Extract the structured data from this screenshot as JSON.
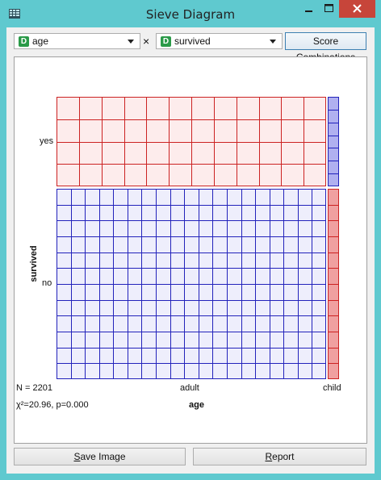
{
  "window": {
    "title": "Sieve Diagram",
    "colors": {
      "frame": "#5fc9cf",
      "close": "#c7453a"
    }
  },
  "controls": {
    "attr_x": {
      "type_badge": "D",
      "value": "age"
    },
    "separator": "×",
    "attr_y": {
      "type_badge": "D",
      "value": "survived"
    },
    "score_button": "Score Combinations"
  },
  "plot": {
    "y_axis_title": "survived",
    "x_axis_title": "age",
    "row_labels": [
      "yes",
      "no"
    ],
    "column_labels": [
      "adult",
      "child"
    ],
    "n_text": "N = 2201",
    "chi_text": "χ²=20.96, p=0.000",
    "colors": {
      "more_than_expected": "#b0b0f0",
      "less_than_expected": "#f0a0a0",
      "red_line": "#cc2222",
      "blue_line": "#2222bb"
    },
    "cells": [
      {
        "row": "yes",
        "column": "adult",
        "color": "red",
        "grid_cols": 12,
        "grid_rows": 4
      },
      {
        "row": "yes",
        "column": "child",
        "color": "blue",
        "grid_cols": 1,
        "grid_rows": 7
      },
      {
        "row": "no",
        "column": "adult",
        "color": "blue",
        "grid_cols": 19,
        "grid_rows": 12
      },
      {
        "row": "no",
        "column": "child",
        "color": "red",
        "grid_cols": 1,
        "grid_rows": 12
      }
    ]
  },
  "buttons": {
    "save_image": {
      "mnemonic": "S",
      "rest": "ave Image"
    },
    "report": {
      "mnemonic": "R",
      "rest": "eport"
    }
  }
}
